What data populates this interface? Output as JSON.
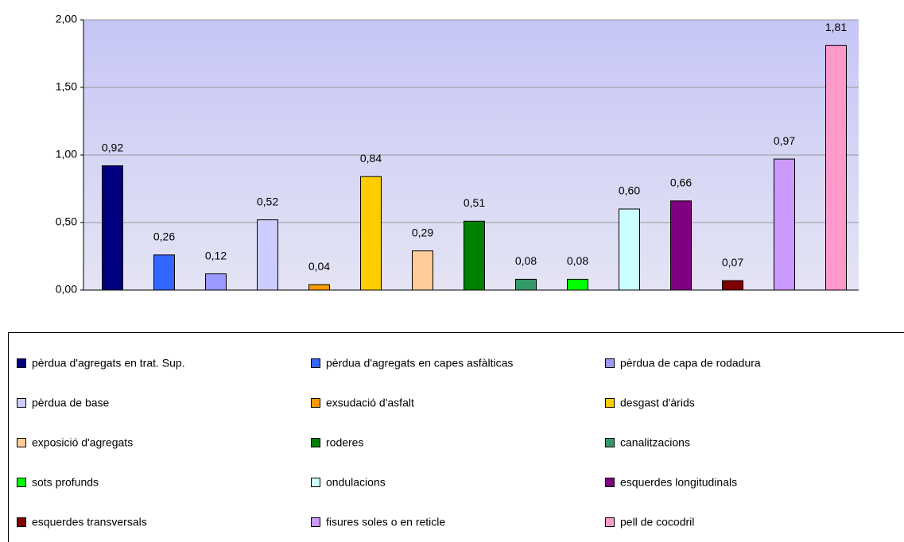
{
  "chart_data": {
    "type": "bar",
    "ylim": [
      0,
      2
    ],
    "yticks": [
      {
        "value": 0,
        "label": "0,00"
      },
      {
        "value": 0.5,
        "label": "0,50"
      },
      {
        "value": 1,
        "label": "1,00"
      },
      {
        "value": 1.5,
        "label": "1,50"
      },
      {
        "value": 2,
        "label": "2,00"
      }
    ],
    "grid": true,
    "legend": "bottom",
    "series": [
      {
        "name": "pèrdua d'agregats en trat. Sup.",
        "color": "#000080",
        "values": [
          0.92
        ],
        "value_labels": [
          "0,92"
        ]
      },
      {
        "name": "pèrdua d'agregats en capes asfàlticas",
        "color": "#3366ff",
        "values": [
          0.26
        ],
        "value_labels": [
          "0,26"
        ]
      },
      {
        "name": "pèrdua de capa de rodadura",
        "color": "#9999ff",
        "values": [
          0.12
        ],
        "value_labels": [
          "0,12"
        ]
      },
      {
        "name": "pèrdua de base",
        "color": "#ccccff",
        "values": [
          0.52
        ],
        "value_labels": [
          "0,52"
        ]
      },
      {
        "name": "exsudació d'asfalt",
        "color": "#ff9900",
        "values": [
          0.04
        ],
        "value_labels": [
          "0,04"
        ]
      },
      {
        "name": "desgast d'àrids",
        "color": "#ffcc00",
        "values": [
          0.84
        ],
        "value_labels": [
          "0,84"
        ]
      },
      {
        "name": "exposició d'agregats",
        "color": "#ffcc99",
        "values": [
          0.29
        ],
        "value_labels": [
          "0,29"
        ]
      },
      {
        "name": "roderes",
        "color": "#008000",
        "values": [
          0.51
        ],
        "value_labels": [
          "0,51"
        ]
      },
      {
        "name": "canalitzacions",
        "color": "#339966",
        "values": [
          0.08
        ],
        "value_labels": [
          "0,08"
        ]
      },
      {
        "name": "sots profunds",
        "color": "#00ff00",
        "values": [
          0.08
        ],
        "value_labels": [
          "0,08"
        ]
      },
      {
        "name": "ondulacions",
        "color": "#ccffff",
        "values": [
          0.6
        ],
        "value_labels": [
          "0,60"
        ]
      },
      {
        "name": "esquerdes longitudinals",
        "color": "#800080",
        "values": [
          0.66
        ],
        "value_labels": [
          "0,66"
        ]
      },
      {
        "name": "esquerdes transversals",
        "color": "#800000",
        "values": [
          0.07
        ],
        "value_labels": [
          "0,07"
        ]
      },
      {
        "name": "fisures soles o en reticle",
        "color": "#cc99ff",
        "values": [
          0.97
        ],
        "value_labels": [
          "0,97"
        ]
      },
      {
        "name": "pell de cocodril",
        "color": "#ff99cc",
        "values": [
          1.81
        ],
        "value_labels": [
          "1,81"
        ]
      }
    ]
  }
}
